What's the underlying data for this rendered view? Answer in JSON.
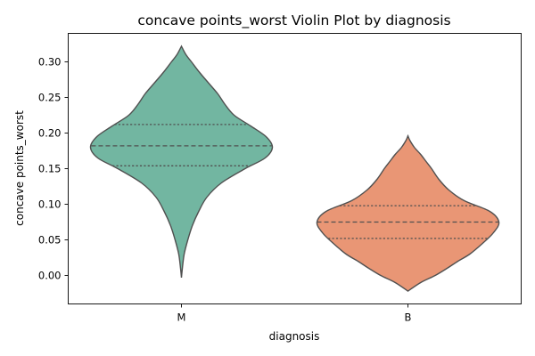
{
  "chart_data": {
    "type": "violin",
    "title": "concave points_worst Violin Plot by diagnosis",
    "xlabel": "diagnosis",
    "ylabel": "concave points_worst",
    "categories": [
      "M",
      "B"
    ],
    "ylim": [
      -0.04,
      0.34
    ],
    "yticks": [
      "0.00",
      "0.05",
      "0.10",
      "0.15",
      "0.20",
      "0.25",
      "0.30"
    ],
    "grid": false,
    "legend": "none",
    "colors": {
      "M": "#72b6a1",
      "B": "#e99675",
      "edge": "#505050"
    },
    "violins": [
      {
        "category": "M",
        "min": -0.003,
        "max": 0.322,
        "q1": 0.154,
        "median": 0.182,
        "q3": 0.212,
        "density": [
          [
            -0.003,
            0.0
          ],
          [
            0.01,
            0.01
          ],
          [
            0.03,
            0.03
          ],
          [
            0.05,
            0.07
          ],
          [
            0.07,
            0.12
          ],
          [
            0.09,
            0.19
          ],
          [
            0.11,
            0.28
          ],
          [
            0.13,
            0.44
          ],
          [
            0.15,
            0.7
          ],
          [
            0.165,
            0.92
          ],
          [
            0.18,
            1.0
          ],
          [
            0.195,
            0.93
          ],
          [
            0.21,
            0.76
          ],
          [
            0.225,
            0.58
          ],
          [
            0.24,
            0.48
          ],
          [
            0.255,
            0.4
          ],
          [
            0.27,
            0.3
          ],
          [
            0.285,
            0.2
          ],
          [
            0.3,
            0.11
          ],
          [
            0.31,
            0.05
          ],
          [
            0.322,
            0.0
          ]
        ]
      },
      {
        "category": "B",
        "min": -0.022,
        "max": 0.196,
        "q1": 0.052,
        "median": 0.075,
        "q3": 0.098,
        "density": [
          [
            -0.022,
            0.0
          ],
          [
            -0.01,
            0.14
          ],
          [
            0.0,
            0.3
          ],
          [
            0.01,
            0.43
          ],
          [
            0.02,
            0.55
          ],
          [
            0.03,
            0.68
          ],
          [
            0.045,
            0.82
          ],
          [
            0.06,
            0.94
          ],
          [
            0.075,
            1.0
          ],
          [
            0.09,
            0.9
          ],
          [
            0.105,
            0.62
          ],
          [
            0.12,
            0.45
          ],
          [
            0.135,
            0.34
          ],
          [
            0.15,
            0.26
          ],
          [
            0.16,
            0.2
          ],
          [
            0.17,
            0.14
          ],
          [
            0.18,
            0.07
          ],
          [
            0.19,
            0.02
          ],
          [
            0.196,
            0.0
          ]
        ]
      }
    ]
  }
}
